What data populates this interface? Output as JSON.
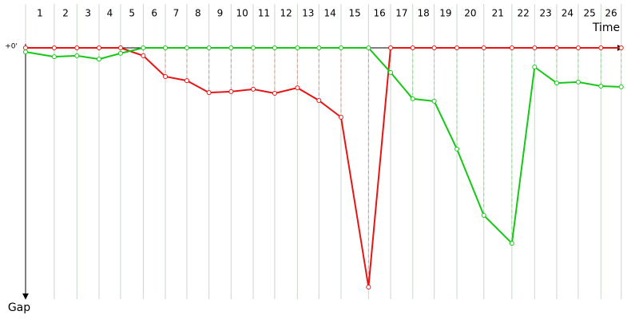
{
  "chart_data": {
    "type": "line",
    "x_label": "Time",
    "y_label": "Gap",
    "lap_labels": [
      1,
      2,
      3,
      4,
      5,
      6,
      7,
      8,
      9,
      10,
      11,
      12,
      13,
      14,
      15,
      16,
      17,
      18,
      19,
      20,
      21,
      22,
      23,
      24,
      25,
      26
    ],
    "x": [
      0,
      4.8,
      8.6,
      12.3,
      15.9,
      19.7,
      23.4,
      27.0,
      30.7,
      34.4,
      38.1,
      41.7,
      45.5,
      49.1,
      52.8,
      57.4,
      61.1,
      64.8,
      68.4,
      72.2,
      76.7,
      81.4,
      85.2,
      88.9,
      92.5,
      96.3,
      99.7
    ],
    "xlim": [
      0,
      100
    ],
    "ylim": [
      0,
      105
    ],
    "yticks": [
      {
        "value": 0,
        "label": "+0'"
      }
    ],
    "series": [
      {
        "color": "#e81414",
        "values": [
          0,
          0,
          0,
          0,
          0,
          3.3,
          12,
          13.7,
          18.7,
          18.3,
          17.3,
          19,
          16.7,
          22,
          29,
          100,
          0,
          0,
          0,
          0,
          0,
          0,
          0,
          0,
          0,
          0,
          0
        ]
      },
      {
        "color": "#14c814",
        "values": [
          1.7,
          3.7,
          3.3,
          4.7,
          2.3,
          0,
          0,
          0,
          0,
          0,
          0,
          0,
          0,
          0,
          0,
          0,
          10.3,
          21.3,
          22.3,
          42.3,
          70,
          81.7,
          8,
          14.7,
          14.3,
          16,
          16.3
        ]
      }
    ]
  }
}
